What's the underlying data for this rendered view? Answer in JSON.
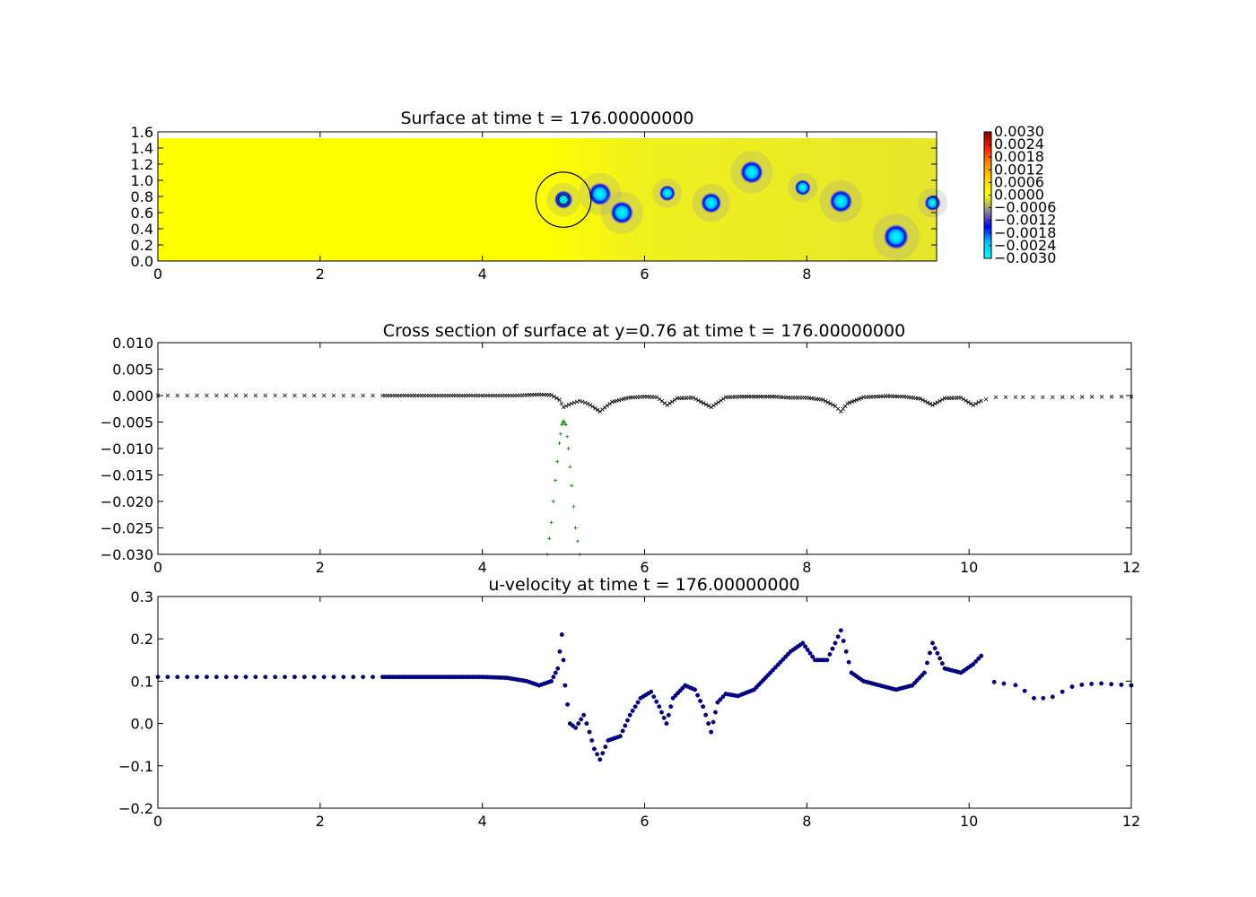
{
  "chart_data": [
    {
      "type": "heatmap",
      "title": "Surface at time t =   176.00000000",
      "xlim": [
        0,
        9.6
      ],
      "ylim": [
        0,
        1.6
      ],
      "xticks": [
        "0",
        "2",
        "4",
        "6",
        "8"
      ],
      "xtick_values": [
        0,
        2,
        4,
        6,
        8
      ],
      "yticks": [
        "0.0",
        "0.2",
        "0.4",
        "0.6",
        "0.8",
        "1.0",
        "1.2",
        "1.4",
        "1.6"
      ],
      "ytick_values": [
        0,
        0.2,
        0.4,
        0.6,
        0.8,
        1.0,
        1.2,
        1.4,
        1.6
      ],
      "colorbar": {
        "range": [
          -0.003,
          0.003
        ],
        "ticks": [
          "0.0030",
          "0.0024",
          "0.0018",
          "0.0012",
          "0.0006",
          "0.0000",
          "−0.0006",
          "−0.0012",
          "−0.0018",
          "−0.0024",
          "−0.0030"
        ],
        "colors": [
          "#7f0000",
          "#ff1a00",
          "#ff8c00",
          "#ffd500",
          "#ffff00",
          "#8c8c8c",
          "#0000ff",
          "#00c8ff",
          "#00ffff"
        ]
      },
      "field_colors": {
        "background": "#ffff00",
        "wake": "#e6e62a"
      },
      "vortices": [
        {
          "x": 5.0,
          "y": 0.76,
          "r": 0.08
        },
        {
          "x": 5.45,
          "y": 0.83,
          "r": 0.1
        },
        {
          "x": 5.72,
          "y": 0.6,
          "r": 0.1
        },
        {
          "x": 6.28,
          "y": 0.84,
          "r": 0.07
        },
        {
          "x": 6.82,
          "y": 0.72,
          "r": 0.09
        },
        {
          "x": 7.32,
          "y": 1.1,
          "r": 0.1
        },
        {
          "x": 7.95,
          "y": 0.91,
          "r": 0.07
        },
        {
          "x": 8.42,
          "y": 0.74,
          "r": 0.1
        },
        {
          "x": 9.1,
          "y": 0.3,
          "r": 0.11
        },
        {
          "x": 9.55,
          "y": 0.72,
          "r": 0.07
        }
      ],
      "circle": {
        "x": 5.0,
        "y": 0.76,
        "r": 0.34
      },
      "inner_circle": {
        "x": 5.0,
        "y": 0.76,
        "r": 0.06
      }
    },
    {
      "type": "scatter",
      "title": "Cross section of surface at y=0.76 at time t =   176.00000000",
      "xlim": [
        0,
        12
      ],
      "ylim": [
        -0.03,
        0.01
      ],
      "xticks": [
        "0",
        "2",
        "4",
        "6",
        "8",
        "10",
        "12"
      ],
      "xtick_values": [
        0,
        2,
        4,
        6,
        8,
        10,
        12
      ],
      "yticks": [
        "0.010",
        "0.005",
        "0.000",
        "−0.005",
        "−0.010",
        "−0.015",
        "−0.020",
        "−0.025",
        "−0.030"
      ],
      "ytick_values": [
        0.01,
        0.005,
        0,
        -0.005,
        -0.01,
        -0.015,
        -0.02,
        -0.025,
        -0.03
      ],
      "series": [
        {
          "marker": "x",
          "color": "#000000",
          "x": [
            0,
            2.8,
            4.4,
            4.7,
            4.85,
            4.95,
            5.0,
            5.1,
            5.2,
            5.3,
            5.45,
            5.6,
            5.8,
            6.0,
            6.15,
            6.28,
            6.4,
            6.6,
            6.82,
            7.0,
            7.2,
            7.4,
            7.6,
            7.8,
            8.0,
            8.2,
            8.35,
            8.42,
            8.5,
            8.7,
            9.0,
            9.2,
            9.4,
            9.55,
            9.7,
            9.9,
            10.05,
            10.15,
            10.3,
            11,
            12
          ],
          "y": [
            0,
            0,
            0,
            0.0002,
            0.0001,
            -0.0008,
            -0.0022,
            -0.0015,
            -0.001,
            -0.0015,
            -0.003,
            -0.0012,
            -0.0004,
            -0.0002,
            -0.0003,
            -0.0018,
            -0.0005,
            -0.0004,
            -0.0022,
            -0.0003,
            -0.0002,
            -0.0002,
            -0.0002,
            -0.0004,
            -0.0004,
            -0.0008,
            -0.002,
            -0.003,
            -0.0015,
            -0.0003,
            -0.0001,
            -0.0002,
            -0.0006,
            -0.0018,
            -0.0005,
            -0.0004,
            -0.0018,
            -0.001,
            -0.0003,
            -0.0003,
            -0.0002
          ]
        },
        {
          "marker": "+",
          "color": "#007f00",
          "x": [
            4.8,
            4.85,
            4.9,
            4.95,
            4.98,
            5.0,
            5.03,
            5.06,
            5.1,
            5.15,
            5.2
          ],
          "y": [
            -0.03,
            -0.024,
            -0.016,
            -0.009,
            -0.0055,
            -0.0048,
            -0.0055,
            -0.01,
            -0.017,
            -0.025,
            -0.03
          ]
        }
      ]
    },
    {
      "type": "scatter",
      "title": "u-velocity at time t =   176.00000000",
      "xlim": [
        0,
        12
      ],
      "ylim": [
        -0.2,
        0.3
      ],
      "xticks": [
        "0",
        "2",
        "4",
        "6",
        "8",
        "10",
        "12"
      ],
      "xtick_values": [
        0,
        2,
        4,
        6,
        8,
        10,
        12
      ],
      "yticks": [
        "0.3",
        "0.2",
        "0.1",
        "0.0",
        "−0.1",
        "−0.2"
      ],
      "ytick_values": [
        0.3,
        0.2,
        0.1,
        0,
        -0.1,
        -0.2
      ],
      "series": [
        {
          "marker": "o",
          "color": "#00008b",
          "x": [
            0,
            2.8,
            4.0,
            4.3,
            4.55,
            4.7,
            4.85,
            4.93,
            4.98,
            5.02,
            5.08,
            5.15,
            5.25,
            5.32,
            5.38,
            5.45,
            5.55,
            5.7,
            5.82,
            5.95,
            6.08,
            6.18,
            6.27,
            6.35,
            6.5,
            6.62,
            6.72,
            6.82,
            6.9,
            7.0,
            7.15,
            7.35,
            7.55,
            7.8,
            7.95,
            8.1,
            8.25,
            8.35,
            8.42,
            8.55,
            8.7,
            8.9,
            9.1,
            9.3,
            9.45,
            9.55,
            9.7,
            9.9,
            10.05,
            10.15,
            10.25,
            10.4,
            10.6,
            10.8,
            11.0,
            11.3,
            11.6,
            12.0
          ],
          "y": [
            0.11,
            0.11,
            0.11,
            0.108,
            0.1,
            0.09,
            0.1,
            0.13,
            0.21,
            0.09,
            0.0,
            -0.01,
            0.02,
            -0.02,
            -0.06,
            -0.085,
            -0.04,
            -0.03,
            0.02,
            0.06,
            0.075,
            0.04,
            0.0,
            0.06,
            0.09,
            0.08,
            0.04,
            -0.02,
            0.05,
            0.07,
            0.065,
            0.08,
            0.12,
            0.17,
            0.19,
            0.15,
            0.15,
            0.19,
            0.22,
            0.12,
            0.1,
            0.09,
            0.08,
            0.09,
            0.12,
            0.19,
            0.13,
            0.12,
            0.14,
            0.16,
            0.1,
            0.095,
            0.09,
            0.06,
            0.06,
            0.09,
            0.095,
            0.09
          ]
        }
      ]
    }
  ]
}
